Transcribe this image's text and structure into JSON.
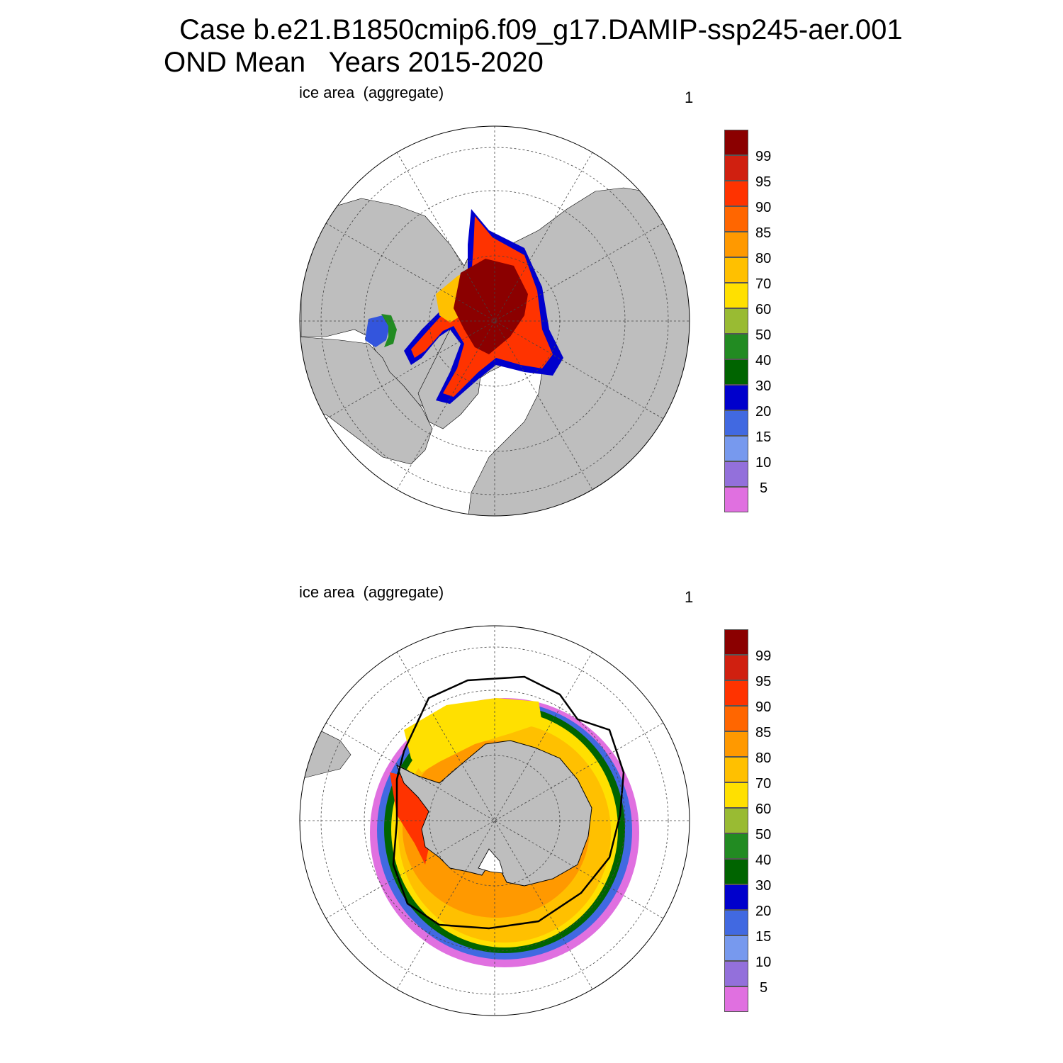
{
  "title": {
    "line1": "Case b.e21.B1850cmip6.f09_g17.DAMIP-ssp245-aer.001",
    "line2": "OND Mean   Years 2015-2020"
  },
  "panels": [
    {
      "id": "nh",
      "hemisphere": "north",
      "left_label": "ice area  (aggregate)",
      "right_label": "1"
    },
    {
      "id": "sh",
      "hemisphere": "south",
      "left_label": "ice area  (aggregate)",
      "right_label": "1"
    }
  ],
  "colorbar": {
    "labels": [
      "99",
      "95",
      "90",
      "85",
      "80",
      "70",
      "60",
      "50",
      "40",
      "30",
      "20",
      "15",
      "10",
      "5"
    ],
    "colors": [
      "#8b0000",
      "#d02010",
      "#ff3300",
      "#ff6600",
      "#ff9900",
      "#ffc000",
      "#ffe000",
      "#99bb33",
      "#228b22",
      "#006400",
      "#0000cc",
      "#4169e1",
      "#7799ee",
      "#9370db",
      "#e070e0"
    ]
  },
  "colors": {
    "land": "#bebebe",
    "ocean": "#ffffff",
    "contour": "#000000"
  }
}
